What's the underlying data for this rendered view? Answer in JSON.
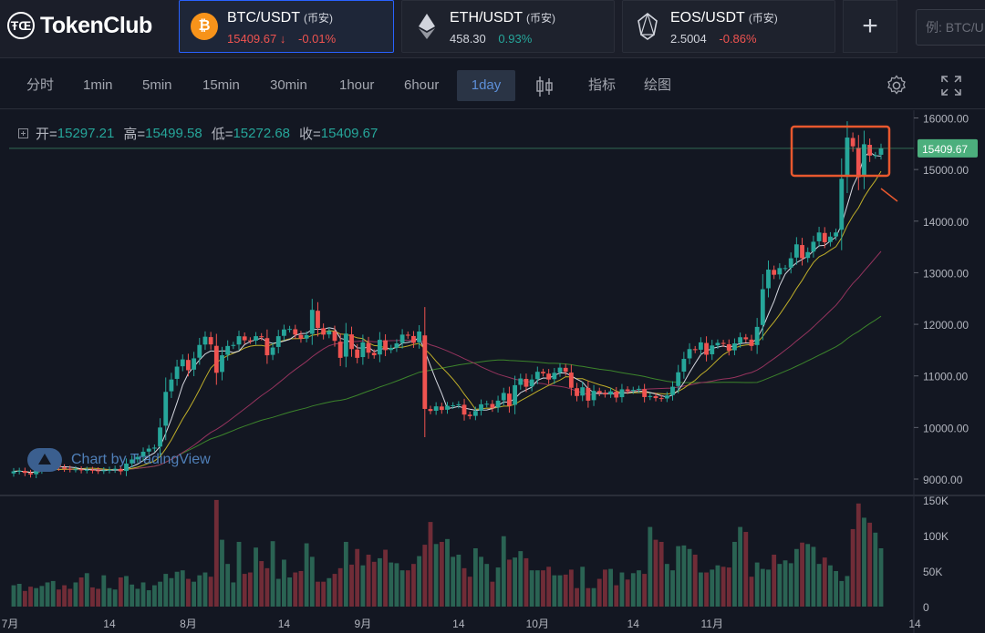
{
  "brand": {
    "name": "TokenClub",
    "mark": "ŦŒ"
  },
  "tickers": [
    {
      "icon": "bitcoin-icon",
      "icon_color": "#f7931a",
      "icon_glyph": "₿",
      "name": "BTC/USDT",
      "exchange": "(币安)",
      "price": "15409.67",
      "arrow": "↓",
      "change": "-0.01%",
      "direction": "down"
    },
    {
      "icon": "ethereum-icon",
      "icon_color": "#1e222d",
      "icon_glyph": "◆",
      "name": "ETH/USDT",
      "exchange": "(币安)",
      "price": "458.30",
      "change": "0.93%",
      "direction": "up"
    },
    {
      "icon": "eos-icon",
      "icon_color": "#1e222d",
      "icon_glyph": "⬡",
      "name": "EOS/USDT",
      "exchange": "(币安)",
      "price": "2.5004",
      "change": "-0.86%",
      "direction": "down"
    }
  ],
  "add_label": "+",
  "search": {
    "placeholder": "例: BTC/U"
  },
  "toolbar": {
    "intervals": [
      "分时",
      "1min",
      "5min",
      "15min",
      "30min",
      "1hour",
      "6hour",
      "1day"
    ],
    "active_interval": "1day",
    "indicators_label": "指标",
    "draw_label": "绘图"
  },
  "legend": {
    "open_label": "开=",
    "open": "15297.21",
    "high_label": "高=",
    "high": "15499.58",
    "low_label": "低=",
    "low": "15272.68",
    "close_label": "收=",
    "close": "15409.67"
  },
  "watermark": "Chart by TradingView",
  "colors": {
    "up": "#26a69a",
    "down": "#ef5350",
    "ma5": "#e0e3eb",
    "ma10": "#c8b62a",
    "ma30": "#9c3561",
    "ma60": "#3e8a2c",
    "highlight": "#e8582e",
    "price_tag": "#4caf7d"
  },
  "chart_data": {
    "type": "candlestick",
    "price_axis": {
      "ticks": [
        "16000.00",
        "15000.00",
        "14000.00",
        "13000.00",
        "12000.00",
        "11000.00",
        "10000.00",
        "9000.00"
      ],
      "ylim": [
        8700,
        16150
      ]
    },
    "volume_axis": {
      "ticks": [
        "150K",
        "100K",
        "50K",
        "0"
      ],
      "ylim": [
        0,
        155000
      ]
    },
    "x_ticks": [
      "7月",
      "14",
      "8月",
      "14",
      "9月",
      "14",
      "10月",
      "14",
      "11月",
      "14"
    ],
    "last_price_label": "15409.67",
    "closes": [
      9150,
      9160,
      9120,
      9090,
      9170,
      9230,
      9250,
      9290,
      9230,
      9200,
      9190,
      9190,
      9170,
      9180,
      9170,
      9160,
      9170,
      9180,
      9200,
      9150,
      9300,
      9380,
      9430,
      9530,
      9590,
      9610,
      10000,
      10690,
      10930,
      11180,
      11320,
      11110,
      11340,
      11600,
      11760,
      11610,
      11060,
      11400,
      11580,
      11600,
      11770,
      11690,
      11680,
      11770,
      11750,
      11400,
      11550,
      11770,
      11900,
      11910,
      11800,
      11720,
      11790,
      12280,
      11930,
      11800,
      11870,
      11680,
      11350,
      11820,
      11520,
      11350,
      11650,
      11450,
      11400,
      11700,
      11500,
      11540,
      11630,
      11800,
      11780,
      11640,
      11860,
      10360,
      10320,
      10410,
      10340,
      10420,
      10430,
      10450,
      10250,
      10220,
      10320,
      10450,
      10460,
      10380,
      10520,
      10670,
      10420,
      10820,
      10950,
      10790,
      10930,
      11080,
      11050,
      10930,
      11060,
      11160,
      11080,
      10770,
      10610,
      10780,
      10520,
      10710,
      10670,
      10640,
      10700,
      10580,
      10740,
      10710,
      10730,
      10750,
      10590,
      10610,
      10570,
      10560,
      10620,
      10790,
      11070,
      11330,
      11520,
      11500,
      11650,
      11410,
      11590,
      11640,
      11620,
      11490,
      11630,
      11750,
      11710,
      11580,
      11950,
      12680,
      13060,
      12960,
      13090,
      13090,
      13280,
      13550,
      13280,
      13400,
      13600,
      13780,
      13590,
      13700,
      13780,
      14820,
      15620,
      15450,
      14850,
      15490,
      15270,
      15280,
      15409
    ],
    "volumes": [
      30000,
      32000,
      22000,
      28000,
      26000,
      29000,
      34000,
      36000,
      24000,
      30000,
      25000,
      34000,
      41000,
      47000,
      27000,
      25000,
      44000,
      26000,
      24000,
      41000,
      43000,
      31000,
      25000,
      34000,
      23000,
      30000,
      35000,
      46000,
      40000,
      49000,
      51000,
      39000,
      35000,
      44000,
      48000,
      42000,
      150000,
      94000,
      60000,
      34000,
      91000,
      46000,
      48000,
      83000,
      64000,
      54000,
      92000,
      39000,
      66000,
      41000,
      48000,
      50000,
      89000,
      70000,
      35000,
      35000,
      40000,
      46000,
      54000,
      91000,
      59000,
      81000,
      58000,
      73000,
      63000,
      68000,
      80000,
      62000,
      61000,
      51000,
      51000,
      60000,
      71000,
      87000,
      119000,
      88000,
      91000,
      95000,
      70000,
      73000,
      54000,
      42000,
      82000,
      70000,
      60000,
      35000,
      55000,
      99000,
      66000,
      69000,
      78000,
      68000,
      51000,
      51000,
      51000,
      56000,
      44000,
      44000,
      45000,
      52000,
      26000,
      56000,
      26000,
      26000,
      39000,
      52000,
      53000,
      30000,
      48000,
      38000,
      47000,
      51000,
      46000,
      112000,
      94000,
      91000,
      60000,
      51000,
      85000,
      86000,
      81000,
      73000,
      48000,
      48000,
      52000,
      58000,
      56000,
      55000,
      91000,
      112000,
      105000,
      42000,
      62000,
      53000,
      52000,
      73000,
      60000,
      65000,
      61000,
      81000,
      90000,
      88000,
      84000,
      60000,
      69000,
      58000,
      50000,
      36000,
      43000,
      109000,
      145000,
      125000,
      118000,
      104000,
      82000,
      64000,
      22000
    ],
    "series": [
      {
        "name": "MA5",
        "color": "#e0e3eb"
      },
      {
        "name": "MA10",
        "color": "#c8b62a"
      },
      {
        "name": "MA30",
        "color": "#9c3561"
      },
      {
        "name": "MA60",
        "color": "#3e8a2c"
      }
    ]
  }
}
